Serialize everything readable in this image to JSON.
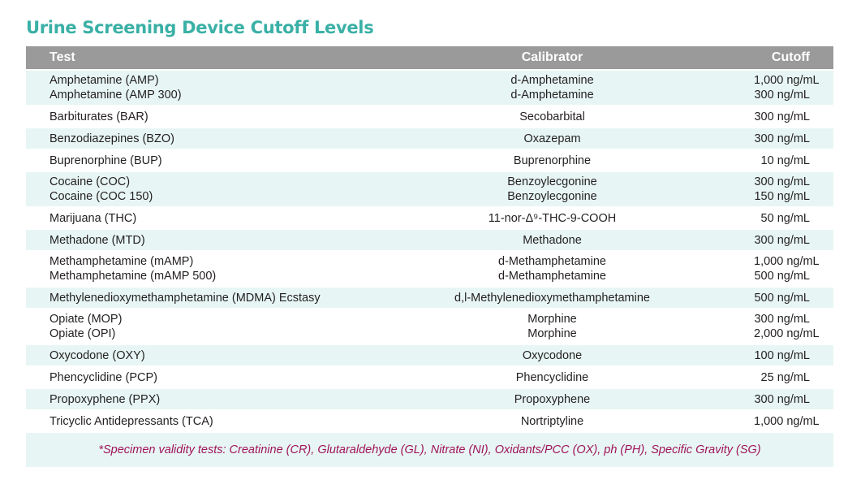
{
  "title": "Urine Screening Device Cutoff Levels",
  "headers": {
    "test": "Test",
    "calibrator": "Calibrator",
    "cutoff": "Cutoff"
  },
  "rows": [
    {
      "tests": [
        "Amphetamine (AMP)",
        "Amphetamine (AMP 300)"
      ],
      "calibrators": [
        "d-Amphetamine",
        "d-Amphetamine"
      ],
      "cutoffs": [
        "1,000 ng/mL",
        "300 ng/mL"
      ]
    },
    {
      "tests": [
        "Barbiturates (BAR)"
      ],
      "calibrators": [
        "Secobarbital"
      ],
      "cutoffs": [
        "300 ng/mL"
      ]
    },
    {
      "tests": [
        "Benzodiazepines (BZO)"
      ],
      "calibrators": [
        "Oxazepam"
      ],
      "cutoffs": [
        "300 ng/mL"
      ]
    },
    {
      "tests": [
        "Buprenorphine (BUP)"
      ],
      "calibrators": [
        "Buprenorphine"
      ],
      "cutoffs": [
        "10 ng/mL"
      ]
    },
    {
      "tests": [
        "Cocaine (COC)",
        "Cocaine (COC 150)"
      ],
      "calibrators": [
        "Benzoylecgonine",
        "Benzoylecgonine"
      ],
      "cutoffs": [
        "300 ng/mL",
        "150 ng/mL"
      ]
    },
    {
      "tests": [
        "Marijuana (THC)"
      ],
      "calibrators": [
        "11-nor-Δ⁹-THC-9-COOH"
      ],
      "cutoffs": [
        "50 ng/mL"
      ]
    },
    {
      "tests": [
        "Methadone (MTD)"
      ],
      "calibrators": [
        "Methadone"
      ],
      "cutoffs": [
        "300 ng/mL"
      ]
    },
    {
      "tests": [
        "Methamphetamine (mAMP)",
        "Methamphetamine (mAMP 500)"
      ],
      "calibrators": [
        "d-Methamphetamine",
        "d-Methamphetamine"
      ],
      "cutoffs": [
        "1,000 ng/mL",
        "500 ng/mL"
      ]
    },
    {
      "tests": [
        "Methylenedioxymethamphetamine (MDMA) Ecstasy"
      ],
      "calibrators": [
        "d,l-Methylenedioxymethamphetamine"
      ],
      "cutoffs": [
        "500 ng/mL"
      ]
    },
    {
      "tests": [
        "Opiate (MOP)",
        "Opiate (OPI)"
      ],
      "calibrators": [
        "Morphine",
        "Morphine"
      ],
      "cutoffs": [
        "300 ng/mL",
        "2,000 ng/mL"
      ]
    },
    {
      "tests": [
        "Oxycodone (OXY)"
      ],
      "calibrators": [
        "Oxycodone"
      ],
      "cutoffs": [
        "100 ng/mL"
      ]
    },
    {
      "tests": [
        "Phencyclidine (PCP)"
      ],
      "calibrators": [
        "Phencyclidine"
      ],
      "cutoffs": [
        "25 ng/mL"
      ]
    },
    {
      "tests": [
        "Propoxyphene (PPX)"
      ],
      "calibrators": [
        "Propoxyphene"
      ],
      "cutoffs": [
        "300 ng/mL"
      ]
    },
    {
      "tests": [
        "Tricyclic Antidepressants (TCA)"
      ],
      "calibrators": [
        "Nortriptyline"
      ],
      "cutoffs": [
        "1,000 ng/mL"
      ]
    }
  ],
  "footnote": "*Specimen validity tests: Creatinine (CR), Glutaraldehyde (GL), Nitrate (NI), Oxidants/PCC (OX), ph (PH), Specific Gravity (SG)",
  "colors": {
    "title": "#3ab0a6",
    "header_bg": "#9a9a9a",
    "row_tint": "#e7f6f4",
    "footnote": "#a0145a"
  }
}
